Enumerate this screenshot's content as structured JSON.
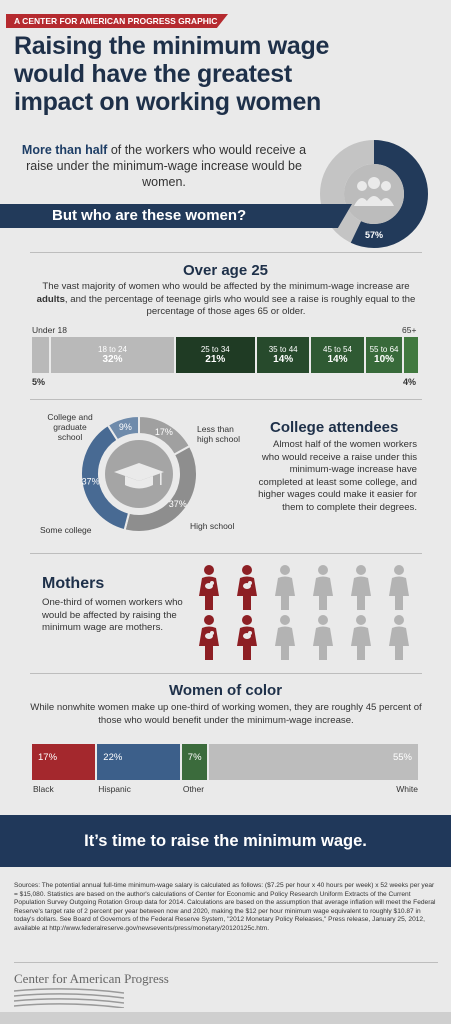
{
  "header": {
    "tag": "A CENTER FOR AMERICAN PROGRESS GRAPHIC",
    "title_line1": "Raising the minimum wage",
    "title_line2": "would have the greatest",
    "title_line3": "impact on working women"
  },
  "intro": {
    "bold": "More than half",
    "text": " of the workers who would receive a raise under the minimum-wage increase would be women.",
    "percent_women": 57,
    "percent_label": "57%",
    "banner": "But who are these women?"
  },
  "age": {
    "title": "Over age 25",
    "text_a": "The vast majority of women who would be affected by the minimum-wage increase are ",
    "text_bold": "adults",
    "text_b": ", and the percentage of teenage girls who would see a raise is roughly equal to the percentage of those ages 65 or older.",
    "under18_label": "Under 18",
    "under18_pct": "5%",
    "over65_label": "65+",
    "over65_pct": "4%",
    "segments": [
      {
        "label": "",
        "pct": "",
        "value": 5,
        "color": "#b9b9b9"
      },
      {
        "label": "18 to 24",
        "pct": "32%",
        "value": 32,
        "color": "#b9b9b9"
      },
      {
        "label": "25 to 34",
        "pct": "21%",
        "value": 21,
        "color": "#1f3b24"
      },
      {
        "label": "35 to 44",
        "pct": "14%",
        "value": 14,
        "color": "#274a2c"
      },
      {
        "label": "45 to 54",
        "pct": "14%",
        "value": 14,
        "color": "#2f5a33"
      },
      {
        "label": "55 to 64",
        "pct": "10%",
        "value": 10,
        "color": "#386a3a"
      },
      {
        "label": "",
        "pct": "",
        "value": 4,
        "color": "#41793f"
      }
    ]
  },
  "education": {
    "title": "College attendees",
    "text": "Almost half of the women workers who would receive a raise under this minimum-wage increase have completed at least some college, and higher wages could make it easier for them to complete their degrees.",
    "slices": [
      {
        "label": "Less than high school",
        "value": 17,
        "pct": "17%",
        "color": "#a0a0a0"
      },
      {
        "label": "High school",
        "value": 37,
        "pct": "37%",
        "color": "#8e8e8e"
      },
      {
        "label": "Some college",
        "value": 37,
        "pct": "37%",
        "color": "#486a93"
      },
      {
        "label": "College and graduate school",
        "value": 9,
        "pct": "9%",
        "color": "#6f8bab"
      }
    ],
    "label_less_a": "Less than",
    "label_less_b": "high school",
    "label_hs": "High school",
    "label_some": "Some college",
    "label_grad_a": "College and",
    "label_grad_b": "graduate school"
  },
  "mothers": {
    "title": "Mothers",
    "text": "One-third of women workers who would be affected by raising the minimum wage are mothers.",
    "highlight_fraction": 0.333
  },
  "color": {
    "title": "Women of color",
    "text": "While nonwhite women make up one-third of working women, they are roughly 45 percent of those who would benefit under the minimum-wage increase.",
    "segments": [
      {
        "label": "Black",
        "pct": "17%",
        "value": 17,
        "color": "#a4282d"
      },
      {
        "label": "Hispanic",
        "pct": "22%",
        "value": 22,
        "color": "#3c5f8a"
      },
      {
        "label": "Other",
        "pct": "7%",
        "value": 7,
        "color": "#3b6b3c"
      },
      {
        "label": "White",
        "pct": "55%",
        "value": 55,
        "color": "#bdbdbd"
      }
    ]
  },
  "cta": "It’s time to raise the minimum wage.",
  "sources": "Sources: The potential annual full-time minimum-wage salary is calculated as follows: ($7.25 per hour x 40 hours per week) x 52 weeks per year = $15,080. Statistics are based on the author's calculations of Center for Economic and Policy Research Uniform Extracts of the Current Population Survey Outgoing Rotation Group data for 2014. Calculations are based on the assumption that average inflation will meet the Federal Reserve's target rate of 2 percent per year between now and 2020, making the $12 per hour minimum wage equivalent to roughly $10.87 in today's dollars. See Board of Governors of the Federal Reserve System, \"2012 Monetary Policy Releases,\" Press release, January 25, 2012, available at http://www.federalreserve.gov/newsevents/press/monetary/20120125c.htm.",
  "logo": "Center for American Progress"
}
